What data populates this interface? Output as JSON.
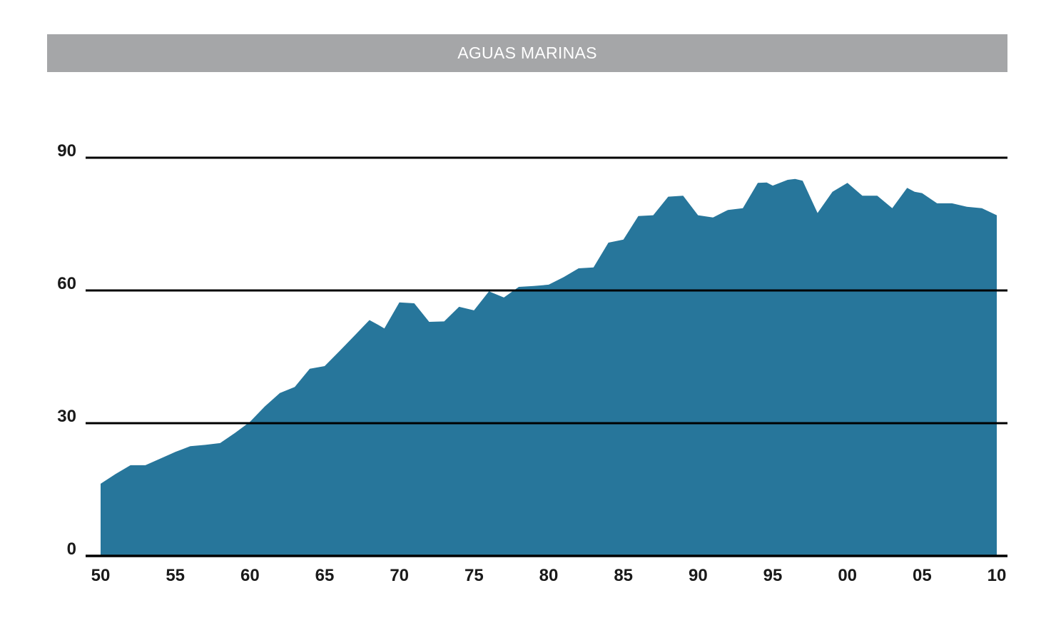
{
  "chart_data": {
    "type": "area",
    "title": "AGUAS MARINAS",
    "xlabel": "",
    "ylabel": "",
    "color": "#27769b",
    "ylim": [
      0,
      90
    ],
    "yticks": [
      0,
      30,
      60,
      90
    ],
    "xlim": [
      1950,
      2010
    ],
    "xtick_values": [
      1950,
      1955,
      1960,
      1965,
      1970,
      1975,
      1980,
      1985,
      1990,
      1995,
      2000,
      2005,
      2010
    ],
    "xtick_labels": [
      "50",
      "55",
      "60",
      "65",
      "70",
      "75",
      "80",
      "85",
      "90",
      "95",
      "00",
      "05",
      "10"
    ],
    "grid": true,
    "legend": "none",
    "x": [
      1950,
      1951,
      1952,
      1953,
      1954,
      1955,
      1956,
      1957,
      1958,
      1959,
      1960,
      1961,
      1962,
      1963,
      1964,
      1965,
      1966,
      1967,
      1968,
      1968.6,
      1969,
      1970,
      1971,
      1972,
      1973,
      1974,
      1975,
      1976,
      1977,
      1978,
      1979,
      1980,
      1981,
      1982,
      1983,
      1984,
      1985,
      1986,
      1987,
      1988,
      1989,
      1990,
      1991,
      1992,
      1993,
      1994,
      1994.6,
      1995,
      1996,
      1996.5,
      1997,
      1998,
      1999,
      2000,
      2001,
      2002,
      2003,
      2004,
      2004.5,
      2005,
      2006,
      2007,
      2008,
      2009,
      2010
    ],
    "values": [
      16.3,
      18.5,
      20.5,
      20.5,
      22.0,
      23.5,
      24.8,
      25.1,
      25.5,
      27.8,
      30.3,
      33.8,
      36.8,
      38.2,
      42.3,
      42.9,
      46.3,
      49.8,
      53.3,
      52.2,
      51.4,
      57.3,
      57.1,
      52.9,
      53.0,
      56.3,
      55.5,
      59.8,
      58.4,
      60.8,
      61.0,
      61.3,
      63.0,
      65.0,
      65.2,
      70.8,
      71.5,
      76.8,
      77.0,
      81.2,
      81.4,
      77.0,
      76.5,
      78.2,
      78.6,
      84.3,
      84.4,
      83.7,
      85.0,
      85.2,
      84.8,
      77.5,
      82.3,
      84.3,
      81.4,
      81.4,
      78.6,
      83.2,
      82.3,
      82.0,
      79.7,
      79.7,
      78.9,
      78.6,
      77.0
    ]
  }
}
